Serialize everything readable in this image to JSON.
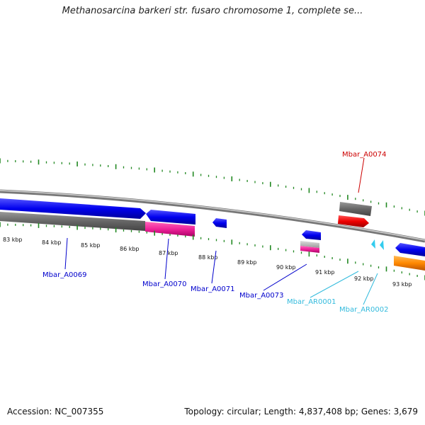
{
  "title": "Methanosarcina barkeri str. fusaro chromosome 1, complete se...",
  "footer": {
    "accession": "Accession: NC_007355",
    "summary": "Topology: circular; Length: 4,837,408 bp; Genes: 3,679"
  },
  "ticks": [
    {
      "label": "83 kbp"
    },
    {
      "label": "84 kbp"
    },
    {
      "label": "85 kbp"
    },
    {
      "label": "86 kbp"
    },
    {
      "label": "87 kbp"
    },
    {
      "label": "88 kbp"
    },
    {
      "label": "89 kbp"
    },
    {
      "label": "90 kbp"
    },
    {
      "label": "91 kbp"
    },
    {
      "label": "92 kbp"
    },
    {
      "label": "93 kbp"
    }
  ],
  "genes": [
    {
      "name": "Mbar_A0069",
      "color": "#0000cc"
    },
    {
      "name": "Mbar_A0070",
      "color": "#0000cc"
    },
    {
      "name": "Mbar_A0071",
      "color": "#0000cc"
    },
    {
      "name": "Mbar_A0073",
      "color": "#0000cc"
    },
    {
      "name": "Mbar_AR0001",
      "color": "#33bbdd"
    },
    {
      "name": "Mbar_AR0002",
      "color": "#33bbdd"
    },
    {
      "name": "Mbar_A0074",
      "color": "#cc0000"
    }
  ],
  "colors": {
    "cds_blue": "#0000ee",
    "gene_gray": "#666666",
    "pink": "#ee2299",
    "red": "#ee0000",
    "orange": "#ff8800",
    "trna_cyan": "#33ccee",
    "tick_green": "#228822",
    "backbone": "#888888"
  }
}
